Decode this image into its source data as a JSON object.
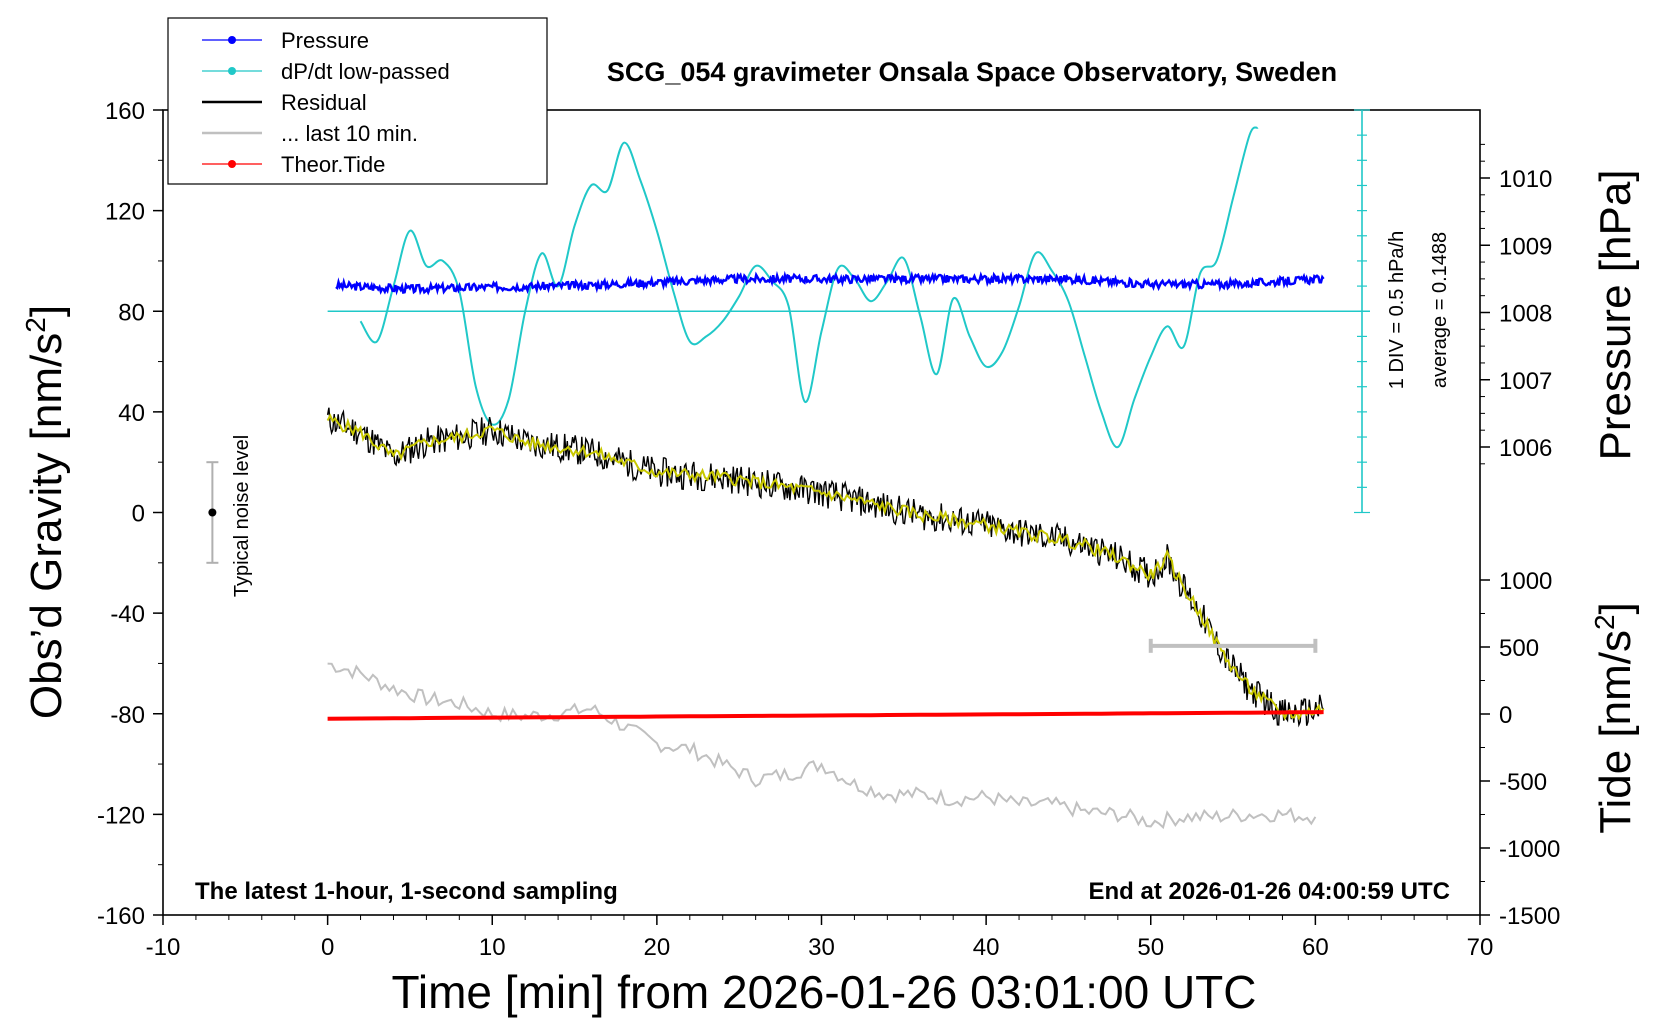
{
  "chart_data": {
    "type": "line",
    "title": "SCG_054 gravimeter Onsala Space Observatory, Sweden",
    "xlabel": "Time [min] from 2026-01-26 03:01:00 UTC",
    "ylabel_prefix": "Obs’d Gravity [nm/s",
    "ylabel_sup": "2",
    "ylabel_suffix": "]",
    "y2label": "Pressure [hPa]",
    "y3label_prefix": "Tide [nm/s",
    "y3label_sup": "2",
    "y3label_suffix": "]",
    "xlim": [
      -10,
      70
    ],
    "ylim": [
      -160,
      160
    ],
    "xticks": [
      "-10",
      "0",
      "10",
      "20",
      "30",
      "40",
      "50",
      "60",
      "70"
    ],
    "yticks": [
      "160",
      "120",
      "80",
      "40",
      "0",
      "-40",
      "-80",
      "-120",
      "-160"
    ],
    "pressure_ticks": [
      "1010",
      "1009",
      "1008",
      "1007",
      "1006"
    ],
    "tide_ticks": [
      "1000",
      "500",
      "0",
      "-500",
      "-1000",
      "-1500"
    ],
    "legend": [
      {
        "label": "Pressure",
        "color": "#0000ff",
        "marker": true
      },
      {
        "label": "dP/dt low-passed",
        "color": "#20c8c8",
        "marker": true
      },
      {
        "label": "Residual",
        "color": "#000000",
        "marker": false
      },
      {
        "label": "... last 10 min.",
        "color": "#c0c0c0",
        "marker": false
      },
      {
        "label": "Theor.Tide",
        "color": "#ff0000",
        "marker": true
      }
    ],
    "notes": {
      "left": "The latest 1-hour, 1-second sampling",
      "right": "End at 2026-01-26 04:00:59 UTC",
      "div": "1 DIV = 0.5 hPa/h",
      "average": "average = 0.1488",
      "noise": "Typical noise level"
    },
    "colors": {
      "pressure": "#0000ff",
      "dpdt": "#20c8c8",
      "residual": "#000000",
      "residual_smooth": "#c8c800",
      "last10": "#c0c0c0",
      "tide": "#ff0000"
    },
    "series": [
      {
        "name": "Pressure",
        "axis": "pressure_hPa",
        "x": [
          0.5,
          5,
          10,
          15,
          20,
          25,
          30,
          35,
          40,
          45,
          50,
          55,
          60.5
        ],
        "y": [
          1008.4,
          1008.35,
          1008.38,
          1008.4,
          1008.45,
          1008.5,
          1008.5,
          1008.5,
          1008.5,
          1008.5,
          1008.42,
          1008.42,
          1008.5
        ]
      },
      {
        "name": "dP/dt low-passed",
        "x": [
          2,
          3,
          4,
          5,
          6,
          7,
          8,
          9,
          10,
          11,
          12,
          13,
          14,
          15,
          16,
          17,
          18,
          19,
          20,
          21,
          22,
          23,
          24,
          25,
          26,
          27,
          28,
          29,
          30,
          31,
          32,
          33,
          34,
          35,
          36,
          37,
          38,
          39,
          40,
          41,
          42,
          43,
          44,
          45,
          46,
          47,
          48,
          49,
          50,
          51,
          52,
          53,
          54,
          55,
          56,
          56.5
        ],
        "y": [
          76,
          68,
          90,
          112,
          98,
          100,
          88,
          50,
          35,
          45,
          80,
          103,
          90,
          114,
          130,
          128,
          147,
          132,
          112,
          88,
          68,
          70,
          76,
          86,
          98,
          92,
          82,
          44,
          72,
          97,
          93,
          84,
          92,
          101,
          78,
          55,
          85,
          70,
          58,
          64,
          82,
          103,
          96,
          84,
          62,
          40,
          26,
          45,
          62,
          74,
          66,
          95,
          100,
          125,
          150,
          153
        ]
      },
      {
        "name": "Residual",
        "x": [
          0,
          2,
          4,
          6,
          8,
          10,
          12,
          14,
          16,
          18,
          20,
          22,
          24,
          26,
          28,
          30,
          32,
          34,
          36,
          38,
          40,
          42,
          44,
          46,
          48,
          50,
          51,
          52,
          53,
          54,
          55,
          56,
          57,
          58,
          59,
          60.5
        ],
        "y": [
          37,
          32,
          22,
          28,
          30,
          33,
          28,
          26,
          24,
          20,
          16,
          15,
          14,
          12,
          10,
          8,
          5,
          2,
          -1,
          -3,
          -5,
          -8,
          -10,
          -13,
          -18,
          -25,
          -18,
          -30,
          -40,
          -52,
          -62,
          -70,
          -75,
          -80,
          -80,
          -78
        ]
      },
      {
        "name": "... last 10 min.",
        "x": [
          0,
          2,
          4,
          6,
          8,
          10,
          12,
          14,
          16,
          18,
          20,
          22,
          24,
          26,
          28,
          30,
          32,
          34,
          36,
          38,
          40,
          42,
          44,
          46,
          48,
          50,
          52,
          54,
          56,
          58,
          60
        ],
        "y": [
          -60,
          -64,
          -70,
          -74,
          -76,
          -80,
          -81,
          -80,
          -78,
          -85,
          -92,
          -94,
          -100,
          -106,
          -104,
          -100,
          -108,
          -112,
          -112,
          -114,
          -113,
          -116,
          -116,
          -119,
          -120,
          -123,
          -121,
          -121,
          -120,
          -120,
          -121
        ]
      },
      {
        "name": "Theor.Tide",
        "axis": "tide_nm_s2",
        "x": [
          0,
          10,
          20,
          30,
          40,
          50,
          60.5
        ],
        "y": [
          -35,
          -27,
          -19,
          -11,
          -3,
          5,
          14
        ]
      }
    ],
    "noise_bar": {
      "x": -7,
      "center": 0,
      "low": -20,
      "high": 20
    },
    "tenmin_bar": {
      "x_start": 50,
      "x_end": 60,
      "y": -53
    },
    "reference_line_y": 80
  }
}
